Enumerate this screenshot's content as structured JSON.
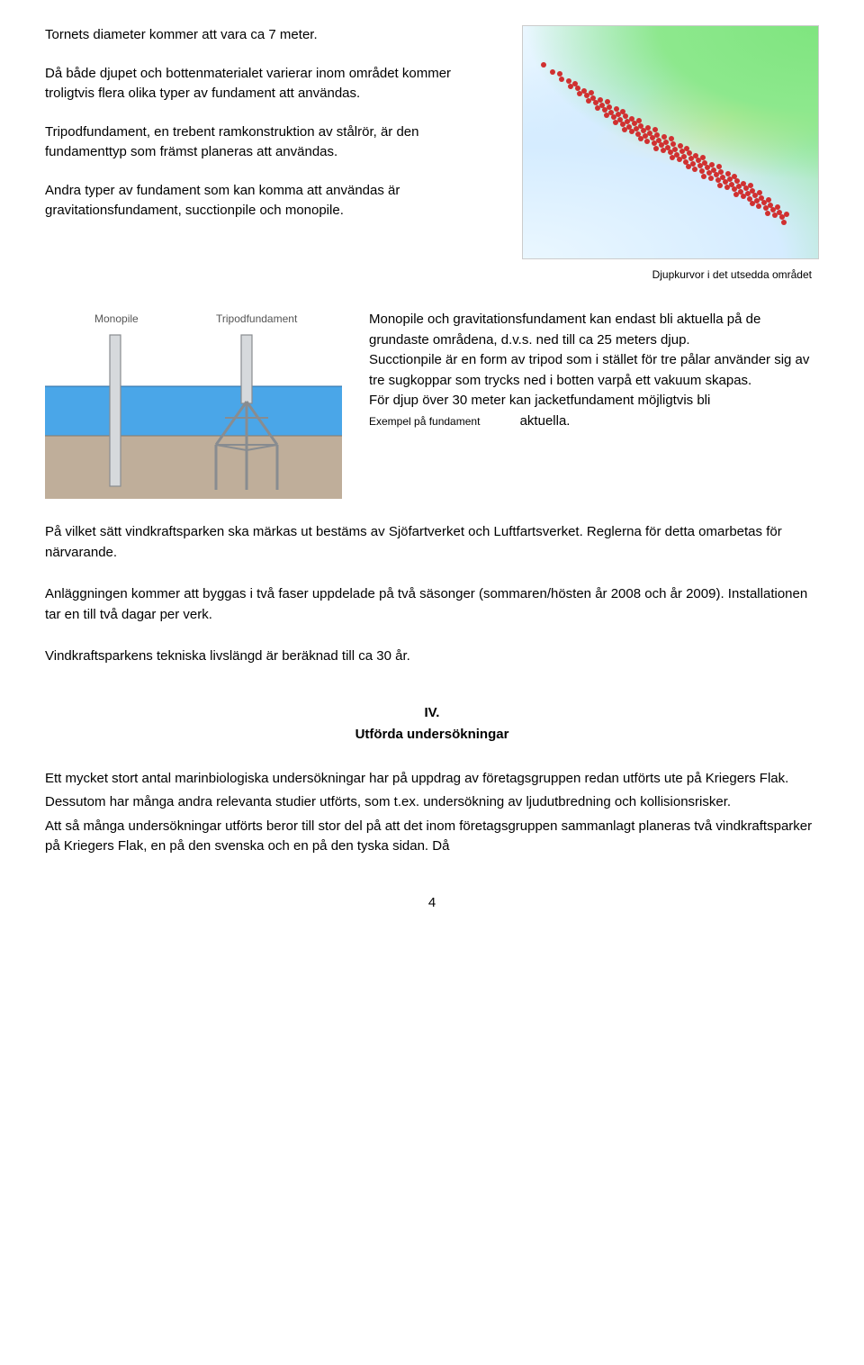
{
  "row1": {
    "p1": "Tornets diameter kommer att vara ca 7 meter.",
    "p2": "Då både djupet och bottenmaterialet varierar inom området kommer troligtvis flera olika typer av fundament att användas.",
    "p3": "Tripodfundament, en trebent ramkonstruktion av stålrör, är den fundamenttyp som främst planeras att användas.",
    "p4": "Andra typer av fundament som kan komma att användas är gravitationsfundament, succtionpile och monopile."
  },
  "captions": {
    "depth": "Djupkurvor i det utsedda området",
    "foundation": "Exempel på fundament"
  },
  "depth_map": {
    "colors": {
      "shallow_green": "#7fe57f",
      "mid_yellow": "#f5e67a",
      "deep_blue": "#d5ecff",
      "dot": "#d03030"
    },
    "dots_band": {
      "count": 120
    }
  },
  "foundation_figure": {
    "label_monopile": "Monopile",
    "label_tripod": "Tripodfundament",
    "colors": {
      "sky": "#ffffff",
      "water": "#4aa6e8",
      "seabed": "#bfae9a",
      "structure": "#888c90",
      "structure_fill": "#d6d9dc",
      "label_text": "#555"
    }
  },
  "row2": {
    "p1": "Monopile och gravitationsfundament kan endast bli aktuella på de grundaste områdena, d.v.s. ned till ca 25 meters djup.",
    "p2": "Succtionpile är en form av tripod som i stället för tre pålar använder sig av tre sugkoppar som trycks ned i botten varpå ett vakuum skapas.",
    "p3a": "För djup över 30 meter kan jacketfundament möjligtvis bli",
    "p3b": "aktuella."
  },
  "body": {
    "p5": "På vilket sätt vindkraftsparken ska märkas ut bestäms av Sjöfartverket och Luftfartsverket. Reglerna för detta omarbetas för närvarande.",
    "p6": "Anläggningen kommer att byggas i två faser uppdelade på två säsonger (sommaren/hösten år 2008 och år 2009). Installationen tar en till två dagar per verk.",
    "p7": "Vindkraftsparkens tekniska livslängd är beräknad till ca 30 år."
  },
  "section": {
    "roman": "IV.",
    "title": "Utförda undersökningar"
  },
  "body2": {
    "p8": "Ett mycket stort antal marinbiologiska undersökningar har på uppdrag av företagsgruppen redan utförts ute på Kriegers Flak.",
    "p9": "Dessutom har många andra relevanta studier utförts, som t.ex. undersökning av ljudutbredning och kollisionsrisker.",
    "p10": "Att så många undersökningar utförts beror till stor del på att det inom företagsgruppen sammanlagt planeras två vindkraftsparker på Kriegers Flak, en på den svenska och en på den tyska sidan. Då"
  },
  "page_number": "4"
}
